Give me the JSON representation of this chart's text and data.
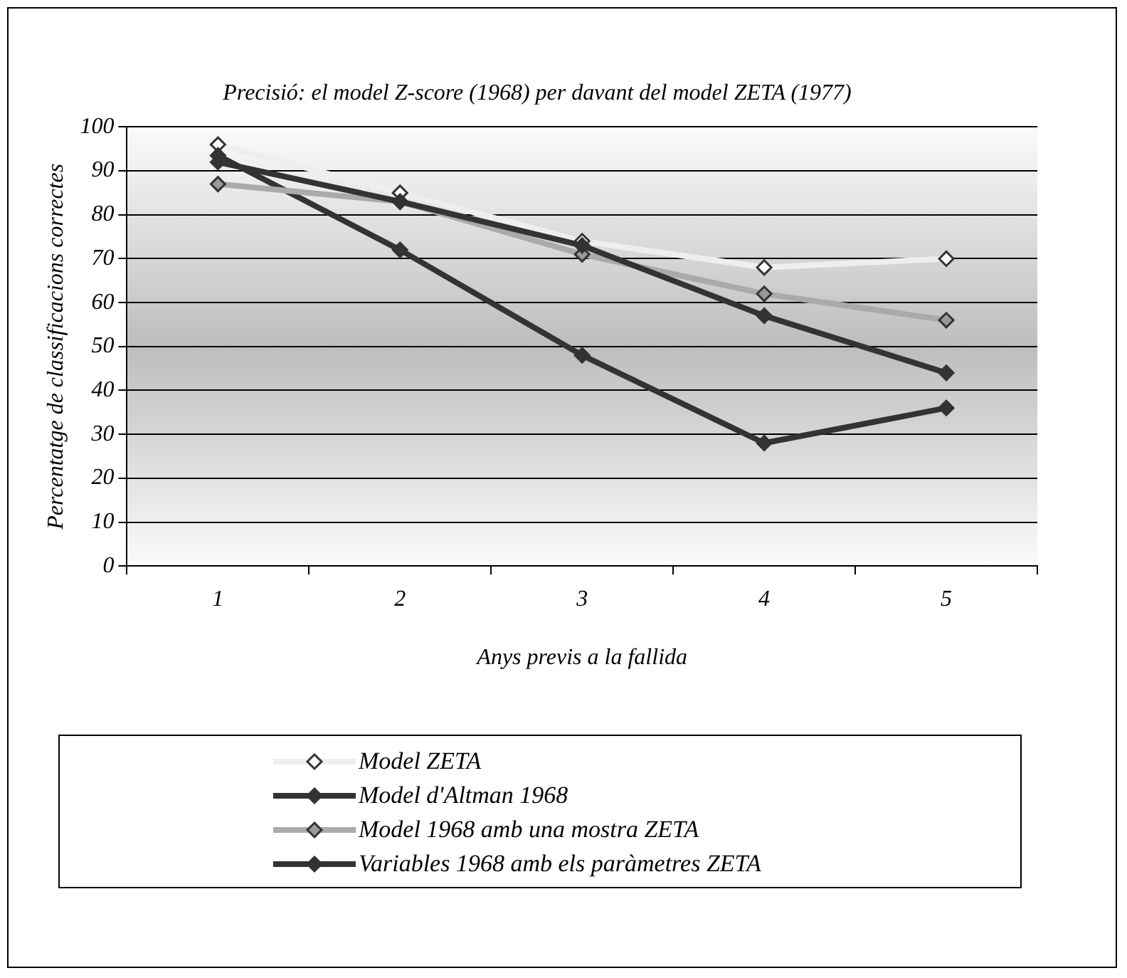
{
  "chart_data": {
    "type": "line",
    "title": "Precisió: el model Z-score (1968) per davant del model ZETA (1977)",
    "xlabel": "Anys previs a la fallida",
    "ylabel": "Percentatge de classificacions correctes",
    "categories": [
      "1",
      "2",
      "3",
      "4",
      "5"
    ],
    "series": [
      {
        "name": "Model ZETA",
        "color": "#eeeeee",
        "values": [
          96,
          85,
          74,
          68,
          70
        ]
      },
      {
        "name": "Model d'Altman 1968",
        "color": "#333333",
        "values": [
          93.5,
          72,
          48,
          28,
          36
        ]
      },
      {
        "name": "Model 1968 amb una mostra ZETA",
        "color": "#aaaaaa",
        "values": [
          87,
          83,
          71,
          62,
          56
        ]
      },
      {
        "name": "Variables 1968 amb els paràmetres ZETA",
        "color": "#333333",
        "values": [
          92,
          83,
          73,
          57,
          44
        ]
      }
    ],
    "ylim": [
      0,
      100
    ],
    "yticks": [
      0,
      10,
      20,
      30,
      40,
      50,
      60,
      70,
      80,
      90,
      100
    ],
    "grid": "y",
    "legend": "bottom",
    "marker": "diamond",
    "line_style": "solid"
  }
}
